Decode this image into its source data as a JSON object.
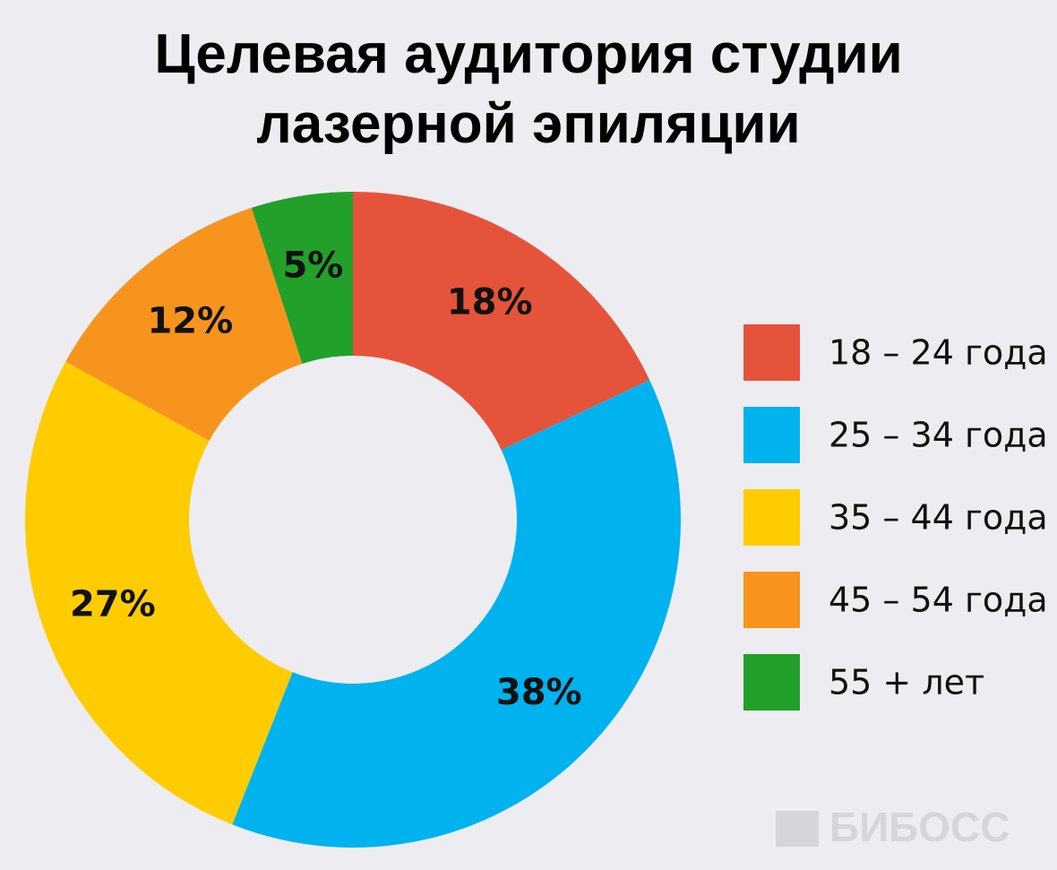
{
  "chart_data": {
    "type": "donut",
    "title": "Целевая аудитория студии лазерной эпиляции",
    "categories": [
      "18 – 24 года",
      "25 – 34 года",
      "35 – 44 года",
      "45 – 54 года",
      "55 + лет"
    ],
    "values": [
      18,
      38,
      27,
      12,
      5
    ],
    "value_labels": [
      "18%",
      "38%",
      "27%",
      "12%",
      "5%"
    ],
    "colors": [
      "#e5533b",
      "#00b2ee",
      "#ffcc00",
      "#f7941d",
      "#22a02a"
    ],
    "legend": "right",
    "watermark": "БИБОСС"
  }
}
